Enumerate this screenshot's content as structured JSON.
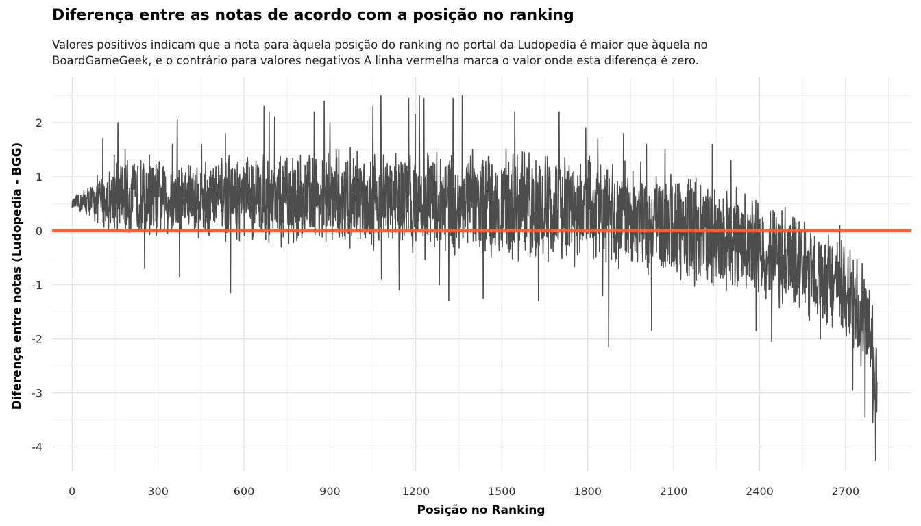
{
  "chart_data": {
    "type": "line",
    "title": "Diferença entre as notas de acordo com a posição no ranking",
    "subtitle_lines": [
      "Valores positivos indicam que a nota para àquela posição do ranking no portal da Ludopedia é maior que àquela no",
      "BoardGameGeek, e o contrário para valores negativos A linha vermelha marca o valor onde esta diferença é zero."
    ],
    "xlabel": "Posição no Ranking",
    "ylabel": "Diferença entre notas (Ludopedia - BGG)",
    "xlim": [
      -70,
      2930
    ],
    "ylim": [
      -4.45,
      2.85
    ],
    "x_ticks": [
      0,
      300,
      600,
      900,
      1200,
      1500,
      1800,
      2100,
      2400,
      2700
    ],
    "x_tick_labels": [
      "0",
      "300",
      "600",
      "900",
      "1200",
      "1500",
      "1800",
      "2100",
      "2400",
      "2700"
    ],
    "y_ticks": [
      2,
      1,
      0,
      -1,
      -2,
      -3,
      -4
    ],
    "y_tick_labels": [
      "2",
      "1",
      "0",
      "-1",
      "-2",
      "-3",
      "-4"
    ],
    "grid": true,
    "series": [
      {
        "color": "#4d4d4d",
        "envelope": [
          {
            "x": 0,
            "lo": 0.4,
            "hi": 0.6,
            "mean": 0.5
          },
          {
            "x": 150,
            "lo": -0.1,
            "hi": 1.4,
            "mean": 0.6
          },
          {
            "x": 400,
            "lo": -0.1,
            "hi": 1.5,
            "mean": 0.6
          },
          {
            "x": 700,
            "lo": -0.2,
            "hi": 1.6,
            "mean": 0.6
          },
          {
            "x": 1000,
            "lo": -0.3,
            "hi": 1.7,
            "mean": 0.6
          },
          {
            "x": 1300,
            "lo": -0.5,
            "hi": 1.7,
            "mean": 0.5
          },
          {
            "x": 1600,
            "lo": -0.6,
            "hi": 1.6,
            "mean": 0.45
          },
          {
            "x": 1900,
            "lo": -0.8,
            "hi": 1.4,
            "mean": 0.3
          },
          {
            "x": 2200,
            "lo": -1.1,
            "hi": 1.1,
            "mean": 0.0
          },
          {
            "x": 2450,
            "lo": -1.5,
            "hi": 0.5,
            "mean": -0.45
          },
          {
            "x": 2650,
            "lo": -1.9,
            "hi": 0.1,
            "mean": -0.9
          },
          {
            "x": 2780,
            "lo": -2.6,
            "hi": -0.6,
            "mean": -1.7
          },
          {
            "x": 2810,
            "lo": -3.5,
            "hi": -1.5,
            "mean": -2.7
          }
        ],
        "spikes": [
          {
            "x": 107,
            "y": 1.7
          },
          {
            "x": 147,
            "y": 1.4
          },
          {
            "x": 160,
            "y": 2.0
          },
          {
            "x": 185,
            "y": 1.5
          },
          {
            "x": 240,
            "y": 1.3
          },
          {
            "x": 253,
            "y": -0.7
          },
          {
            "x": 270,
            "y": 1.4
          },
          {
            "x": 350,
            "y": 1.6
          },
          {
            "x": 367,
            "y": 2.05
          },
          {
            "x": 375,
            "y": -0.85
          },
          {
            "x": 452,
            "y": 1.6
          },
          {
            "x": 535,
            "y": 1.8
          },
          {
            "x": 553,
            "y": -1.15
          },
          {
            "x": 670,
            "y": 2.3
          },
          {
            "x": 688,
            "y": 2.2
          },
          {
            "x": 707,
            "y": 2.1
          },
          {
            "x": 730,
            "y": -0.3
          },
          {
            "x": 845,
            "y": 2.2
          },
          {
            "x": 880,
            "y": 2.4
          },
          {
            "x": 900,
            "y": 2.0
          },
          {
            "x": 1050,
            "y": 2.3
          },
          {
            "x": 1078,
            "y": 2.5
          },
          {
            "x": 1080,
            "y": -0.9
          },
          {
            "x": 1142,
            "y": -1.1
          },
          {
            "x": 1175,
            "y": 2.45
          },
          {
            "x": 1198,
            "y": 2.15
          },
          {
            "x": 1212,
            "y": 2.5
          },
          {
            "x": 1228,
            "y": 2.45
          },
          {
            "x": 1282,
            "y": -1.0
          },
          {
            "x": 1315,
            "y": -1.3
          },
          {
            "x": 1330,
            "y": 2.45
          },
          {
            "x": 1362,
            "y": 2.5
          },
          {
            "x": 1435,
            "y": -1.25
          },
          {
            "x": 1545,
            "y": 2.2
          },
          {
            "x": 1628,
            "y": -1.3
          },
          {
            "x": 1700,
            "y": 2.2
          },
          {
            "x": 1793,
            "y": 1.9
          },
          {
            "x": 1835,
            "y": 1.7
          },
          {
            "x": 1852,
            "y": -1.2
          },
          {
            "x": 1873,
            "y": -2.15
          },
          {
            "x": 1925,
            "y": 1.8
          },
          {
            "x": 2005,
            "y": 1.6
          },
          {
            "x": 2023,
            "y": -1.85
          },
          {
            "x": 2070,
            "y": 1.5
          },
          {
            "x": 2235,
            "y": 1.6
          },
          {
            "x": 2300,
            "y": 1.3
          },
          {
            "x": 2388,
            "y": -1.85
          },
          {
            "x": 2442,
            "y": -2.05
          },
          {
            "x": 2612,
            "y": -2.0
          },
          {
            "x": 2680,
            "y": 0.1
          },
          {
            "x": 2725,
            "y": -2.95
          },
          {
            "x": 2768,
            "y": -3.45
          },
          {
            "x": 2795,
            "y": -3.55
          },
          {
            "x": 2805,
            "y": -4.25
          }
        ]
      },
      {
        "color": "#f4603e",
        "reference_y": 0
      }
    ]
  }
}
